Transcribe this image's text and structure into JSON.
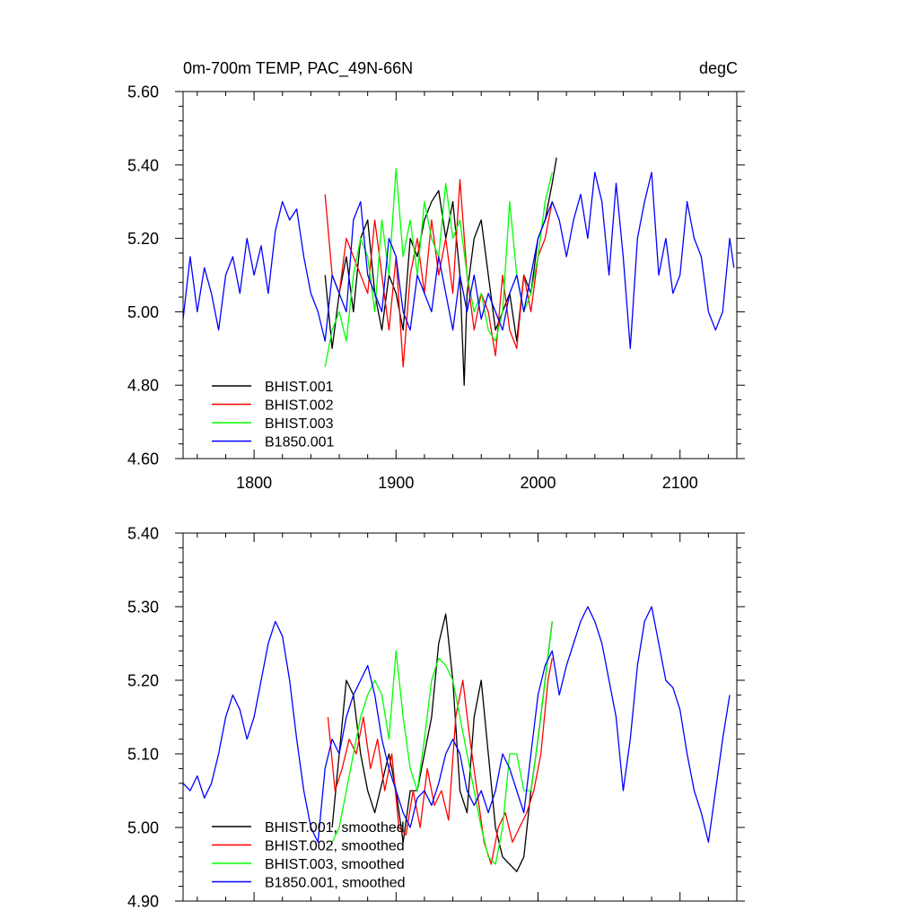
{
  "chart_data": [
    {
      "type": "line",
      "title": "0m-700m TEMP, PAC_49N-66N",
      "units": "degC",
      "xlim": [
        1750,
        2140
      ],
      "ylim": [
        4.6,
        5.6
      ],
      "xticks": [
        1800,
        1900,
        2000,
        2100
      ],
      "xtick_labels": [
        "1800",
        "1900",
        "2000",
        "2100"
      ],
      "yticks": [
        4.6,
        4.8,
        5.0,
        5.2,
        5.4,
        5.6
      ],
      "ytick_labels": [
        "4.60",
        "4.80",
        "5.00",
        "5.20",
        "5.40",
        "5.60"
      ],
      "legend_position": "bottom-left",
      "series": [
        {
          "name": "BHIST.001",
          "color": "#000000",
          "x": [
            1850,
            1855,
            1860,
            1865,
            1870,
            1875,
            1880,
            1885,
            1890,
            1895,
            1900,
            1905,
            1910,
            1915,
            1920,
            1925,
            1930,
            1935,
            1940,
            1945,
            1948,
            1950,
            1955,
            1960,
            1965,
            1970,
            1975,
            1980,
            1985,
            1990,
            1995,
            2000,
            2005,
            2010,
            2013
          ],
          "y": [
            5.1,
            4.9,
            5.05,
            5.15,
            5.0,
            5.2,
            5.25,
            5.05,
            4.95,
            5.1,
            5.05,
            4.95,
            5.2,
            5.15,
            5.25,
            5.3,
            5.33,
            5.2,
            5.3,
            5.1,
            4.8,
            5.05,
            5.2,
            5.25,
            5.1,
            4.95,
            5.0,
            5.05,
            4.92,
            5.1,
            5.05,
            5.2,
            5.25,
            5.35,
            5.42
          ]
        },
        {
          "name": "BHIST.002",
          "color": "#ff0000",
          "x": [
            1850,
            1855,
            1860,
            1865,
            1870,
            1875,
            1880,
            1885,
            1890,
            1895,
            1900,
            1905,
            1910,
            1915,
            1920,
            1925,
            1930,
            1935,
            1940,
            1945,
            1950,
            1955,
            1960,
            1965,
            1970,
            1975,
            1980,
            1985,
            1990,
            1995,
            2000,
            2005,
            2010
          ],
          "y": [
            5.32,
            5.1,
            5.05,
            5.2,
            5.15,
            5.1,
            5.05,
            5.25,
            5.1,
            4.95,
            5.15,
            4.85,
            5.1,
            5.2,
            5.05,
            5.25,
            5.1,
            5.2,
            5.05,
            5.36,
            5.1,
            4.95,
            5.05,
            5.0,
            4.88,
            5.1,
            4.95,
            4.9,
            5.1,
            5.0,
            5.15,
            5.2,
            5.3
          ]
        },
        {
          "name": "BHIST.003",
          "color": "#00ff00",
          "x": [
            1850,
            1855,
            1860,
            1865,
            1870,
            1875,
            1880,
            1885,
            1890,
            1895,
            1900,
            1905,
            1910,
            1915,
            1920,
            1925,
            1930,
            1935,
            1940,
            1945,
            1950,
            1955,
            1960,
            1965,
            1970,
            1975,
            1980,
            1985,
            1990,
            1995,
            2000,
            2005,
            2010
          ],
          "y": [
            4.85,
            4.95,
            5.0,
            4.92,
            5.1,
            5.2,
            5.15,
            5.0,
            5.25,
            5.1,
            5.39,
            5.15,
            5.25,
            5.1,
            5.3,
            5.2,
            5.15,
            5.35,
            5.2,
            5.25,
            5.1,
            5.0,
            5.05,
            4.95,
            4.92,
            5.0,
            5.3,
            5.1,
            5.0,
            5.05,
            5.15,
            5.3,
            5.38
          ]
        },
        {
          "name": "B1850.001",
          "color": "#0000ff",
          "x": [
            1750,
            1755,
            1760,
            1765,
            1770,
            1775,
            1780,
            1785,
            1790,
            1795,
            1800,
            1805,
            1810,
            1815,
            1820,
            1825,
            1830,
            1835,
            1840,
            1845,
            1850,
            1855,
            1860,
            1865,
            1870,
            1875,
            1880,
            1885,
            1890,
            1895,
            1900,
            1905,
            1910,
            1915,
            1920,
            1925,
            1930,
            1935,
            1940,
            1945,
            1950,
            1955,
            1960,
            1965,
            1970,
            1975,
            1980,
            1985,
            1990,
            1995,
            2000,
            2005,
            2010,
            2015,
            2020,
            2025,
            2030,
            2035,
            2040,
            2045,
            2050,
            2055,
            2060,
            2065,
            2070,
            2075,
            2080,
            2085,
            2090,
            2095,
            2100,
            2105,
            2110,
            2115,
            2120,
            2125,
            2130,
            2135,
            2138
          ],
          "y": [
            4.98,
            5.15,
            5.0,
            5.12,
            5.05,
            4.95,
            5.1,
            5.15,
            5.05,
            5.2,
            5.1,
            5.18,
            5.05,
            5.22,
            5.3,
            5.25,
            5.28,
            5.15,
            5.05,
            5.0,
            4.92,
            5.1,
            5.05,
            5.0,
            5.25,
            5.3,
            5.1,
            5.05,
            5.0,
            5.2,
            5.15,
            5.0,
            4.95,
            5.1,
            5.05,
            5.0,
            5.15,
            5.05,
            4.95,
            5.1,
            5.0,
            5.1,
            4.98,
            5.05,
            5.0,
            4.95,
            5.05,
            5.1,
            5.0,
            5.1,
            5.2,
            5.25,
            5.3,
            5.25,
            5.15,
            5.25,
            5.32,
            5.2,
            5.38,
            5.3,
            5.1,
            5.35,
            5.15,
            4.9,
            5.2,
            5.3,
            5.38,
            5.1,
            5.2,
            5.05,
            5.1,
            5.3,
            5.2,
            5.15,
            5.0,
            4.95,
            5.0,
            5.2,
            5.12
          ]
        }
      ]
    },
    {
      "type": "line",
      "title": "",
      "xlim": [
        1750,
        2140
      ],
      "ylim": [
        4.9,
        5.4
      ],
      "xticks": [
        1800,
        1900,
        2000,
        2100
      ],
      "xtick_labels": [],
      "yticks": [
        4.9,
        5.0,
        5.1,
        5.2,
        5.3,
        5.4
      ],
      "ytick_labels": [
        "4.90",
        "5.00",
        "5.10",
        "5.20",
        "5.30",
        "5.40"
      ],
      "legend_position": "bottom-left",
      "series": [
        {
          "name": "BHIST.001, smoothed",
          "color": "#000000",
          "x": [
            1855,
            1860,
            1865,
            1870,
            1875,
            1880,
            1885,
            1890,
            1895,
            1900,
            1905,
            1910,
            1915,
            1920,
            1925,
            1930,
            1935,
            1940,
            1945,
            1950,
            1955,
            1960,
            1965,
            1970,
            1975,
            1980,
            1985,
            1990,
            1995,
            2000,
            2005,
            2010
          ],
          "y": [
            5.0,
            5.1,
            5.2,
            5.18,
            5.1,
            5.05,
            5.02,
            5.06,
            5.1,
            5.05,
            4.98,
            5.05,
            5.05,
            5.1,
            5.15,
            5.25,
            5.29,
            5.2,
            5.05,
            5.02,
            5.15,
            5.2,
            5.1,
            5.0,
            4.96,
            4.95,
            4.94,
            4.96,
            5.05,
            5.12,
            5.2,
            5.28
          ]
        },
        {
          "name": "BHIST.002, smoothed",
          "color": "#ff0000",
          "x": [
            1852,
            1857,
            1862,
            1867,
            1872,
            1877,
            1882,
            1887,
            1892,
            1897,
            1902,
            1907,
            1912,
            1917,
            1922,
            1927,
            1932,
            1937,
            1942,
            1947,
            1952,
            1957,
            1962,
            1967,
            1972,
            1977,
            1982,
            1987,
            1992,
            1997,
            2002,
            2007,
            2010
          ],
          "y": [
            5.15,
            5.05,
            5.08,
            5.12,
            5.1,
            5.15,
            5.08,
            5.12,
            5.05,
            5.1,
            5.0,
            4.99,
            5.05,
            5.0,
            5.08,
            5.03,
            5.05,
            5.01,
            5.15,
            5.2,
            5.12,
            5.05,
            4.98,
            4.95,
            5.0,
            5.02,
            4.98,
            5.0,
            5.02,
            5.05,
            5.1,
            5.2,
            5.23
          ]
        },
        {
          "name": "BHIST.003, smoothed",
          "color": "#00ff00",
          "x": [
            1855,
            1860,
            1865,
            1870,
            1875,
            1880,
            1885,
            1890,
            1895,
            1900,
            1905,
            1910,
            1915,
            1920,
            1925,
            1930,
            1935,
            1940,
            1945,
            1950,
            1955,
            1960,
            1965,
            1970,
            1975,
            1980,
            1985,
            1990,
            1995,
            2000,
            2005,
            2010
          ],
          "y": [
            4.98,
            5.0,
            5.05,
            5.1,
            5.15,
            5.18,
            5.2,
            5.18,
            5.12,
            5.24,
            5.15,
            5.08,
            5.05,
            5.12,
            5.2,
            5.23,
            5.22,
            5.2,
            5.15,
            5.1,
            5.05,
            5.0,
            4.96,
            4.95,
            5.0,
            5.1,
            5.1,
            5.05,
            5.05,
            5.12,
            5.2,
            5.28
          ]
        },
        {
          "name": "B1850.001, smoothed",
          "color": "#0000ff",
          "x": [
            1750,
            1755,
            1760,
            1765,
            1770,
            1775,
            1780,
            1785,
            1790,
            1795,
            1800,
            1805,
            1810,
            1815,
            1820,
            1825,
            1830,
            1835,
            1840,
            1845,
            1850,
            1855,
            1860,
            1865,
            1870,
            1875,
            1880,
            1885,
            1890,
            1895,
            1900,
            1905,
            1910,
            1915,
            1920,
            1925,
            1930,
            1935,
            1940,
            1945,
            1950,
            1955,
            1960,
            1965,
            1970,
            1975,
            1980,
            1985,
            1990,
            1995,
            2000,
            2005,
            2010,
            2015,
            2020,
            2025,
            2030,
            2035,
            2040,
            2045,
            2050,
            2055,
            2060,
            2065,
            2070,
            2075,
            2080,
            2085,
            2090,
            2095,
            2100,
            2105,
            2110,
            2115,
            2120,
            2125,
            2130,
            2135
          ],
          "y": [
            5.06,
            5.05,
            5.07,
            5.04,
            5.06,
            5.1,
            5.15,
            5.18,
            5.16,
            5.12,
            5.15,
            5.2,
            5.25,
            5.28,
            5.26,
            5.2,
            5.12,
            5.05,
            5.0,
            4.98,
            5.08,
            5.12,
            5.1,
            5.15,
            5.18,
            5.2,
            5.22,
            5.18,
            5.12,
            5.08,
            5.05,
            5.02,
            5.0,
            5.04,
            5.05,
            5.03,
            5.06,
            5.1,
            5.12,
            5.1,
            5.05,
            5.03,
            5.05,
            5.02,
            5.05,
            5.1,
            5.08,
            5.05,
            5.02,
            5.1,
            5.18,
            5.22,
            5.24,
            5.18,
            5.22,
            5.25,
            5.28,
            5.3,
            5.28,
            5.25,
            5.2,
            5.15,
            5.05,
            5.12,
            5.22,
            5.28,
            5.3,
            5.25,
            5.2,
            5.19,
            5.16,
            5.1,
            5.05,
            5.02,
            4.98,
            5.05,
            5.12,
            5.18
          ]
        }
      ]
    }
  ]
}
